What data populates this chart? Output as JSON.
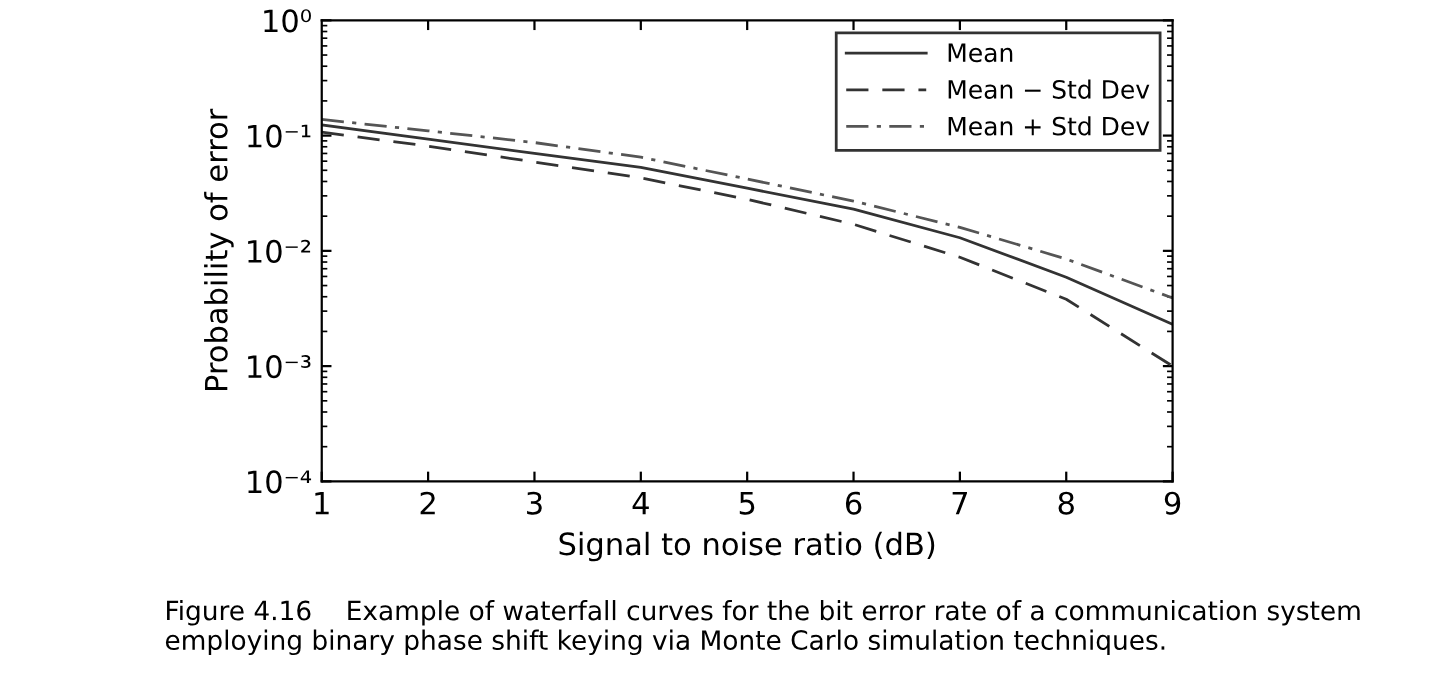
{
  "chart_data": {
    "type": "line",
    "xlabel": "Signal to noise ratio (dB)",
    "ylabel": "Probability of error",
    "log": "y",
    "x": [
      1,
      2,
      3,
      4,
      5,
      6,
      7,
      8,
      9
    ],
    "series": [
      {
        "name": "Mean",
        "color": "#333333",
        "line_style": "solid",
        "values": [
          0.124,
          0.093,
          0.07,
          0.053,
          0.035,
          0.023,
          0.013,
          0.0059,
          0.0023
        ]
      },
      {
        "name": "Mean − Std Dev",
        "color": "#333333",
        "line_style": "dashed",
        "values": [
          0.107,
          0.081,
          0.059,
          0.043,
          0.028,
          0.017,
          0.0088,
          0.0038,
          0.001
        ]
      },
      {
        "name": "Mean + Std Dev",
        "color": "#555555",
        "line_style": "dashdot",
        "values": [
          0.138,
          0.11,
          0.087,
          0.065,
          0.042,
          0.027,
          0.016,
          0.0085,
          0.0039
        ]
      }
    ],
    "xlim": [
      1,
      9
    ],
    "xticks": [
      1,
      2,
      3,
      4,
      5,
      6,
      7,
      8,
      9
    ],
    "ylim": [
      0.0001,
      1
    ],
    "yticks": [
      {
        "value": 0.0001,
        "label": "10⁻⁴"
      },
      {
        "value": 0.001,
        "label": "10⁻³"
      },
      {
        "value": 0.01,
        "label": "10⁻²"
      },
      {
        "value": 0.1,
        "label": "10⁻¹"
      },
      {
        "value": 1,
        "label": "10⁰"
      }
    ],
    "grid": false,
    "legend": "top right",
    "marker": "none",
    "annotations": [
      "Figure 4.16    Example of waterfall curves for the bit error rate of a communication system employing binary phase shift keying via Monte Carlo simulation techniques."
    ]
  }
}
